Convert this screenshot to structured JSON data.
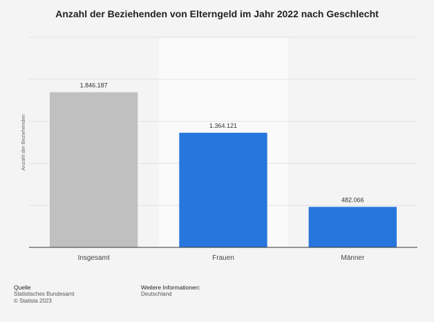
{
  "chart_data": {
    "type": "bar",
    "title": "Anzahl der Beziehenden von Elterngeld im Jahr 2022 nach Geschlecht",
    "xlabel": "",
    "ylabel": "Anzahl der Beziehenden",
    "categories": [
      "Insgesamt",
      "Frauen",
      "Männer"
    ],
    "values": [
      1846187,
      1364121,
      482066
    ],
    "value_labels": [
      "1.846.187",
      "1.364.121",
      "482.066"
    ],
    "bar_colors": [
      "#c0c0c0",
      "#2776dd",
      "#2776dd"
    ],
    "ylim": [
      0,
      2500000
    ],
    "grid": true,
    "highlighted_category": "Frauen",
    "highlight_color": "#fafafa"
  },
  "footer": {
    "source_heading": "Quelle",
    "source_lines": [
      "Statistisches Bundesamt",
      "© Statista 2023"
    ],
    "info_heading": "Weitere Informationen:",
    "info_lines": [
      "Deutschland"
    ]
  }
}
